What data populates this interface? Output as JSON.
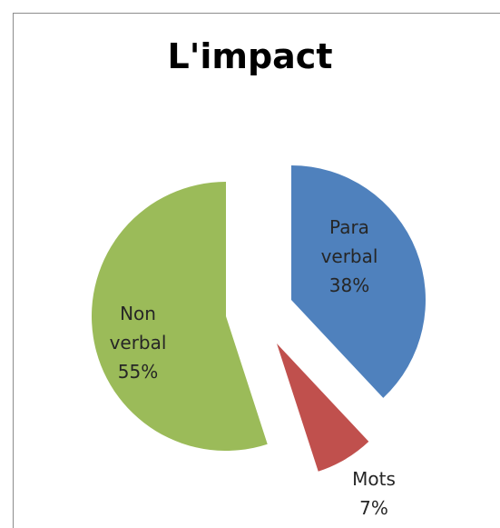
{
  "chart_data": {
    "type": "pie",
    "title": "L'impact",
    "categories": [
      "Para verbal",
      "Mots",
      "Non verbal"
    ],
    "values": [
      38,
      7,
      55
    ],
    "value_labels": [
      "38%",
      "7%",
      "55%"
    ],
    "colors": [
      "#4f81bd",
      "#c0504d",
      "#9bbb59"
    ]
  }
}
